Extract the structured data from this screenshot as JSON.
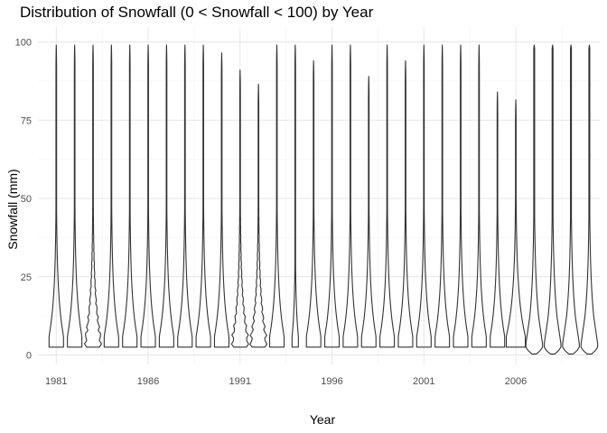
{
  "chart_data": {
    "type": "violin",
    "title": "Distribution of Snowfall (0 < Snowfall < 100) by Year",
    "xlabel": "Year",
    "ylabel": "Snowfall (mm)",
    "ylim": [
      0,
      100
    ],
    "y_ticks": [
      0,
      25,
      50,
      75,
      100
    ],
    "x_ticks": [
      1981,
      1986,
      1991,
      1996,
      2001,
      2006
    ],
    "xlim": [
      1981,
      2010
    ],
    "grid": true,
    "series": [
      {
        "year": 1981,
        "min": 2.5,
        "max": 99,
        "shape": "standard"
      },
      {
        "year": 1982,
        "min": 2.5,
        "max": 99,
        "shape": "standard"
      },
      {
        "year": 1983,
        "min": 2.5,
        "max": 99,
        "shape": "ridged"
      },
      {
        "year": 1984,
        "min": 2.5,
        "max": 99,
        "shape": "standard"
      },
      {
        "year": 1985,
        "min": 2.5,
        "max": 99,
        "shape": "standard"
      },
      {
        "year": 1986,
        "min": 2.5,
        "max": 99,
        "shape": "standard"
      },
      {
        "year": 1987,
        "min": 2.5,
        "max": 99,
        "shape": "standard"
      },
      {
        "year": 1988,
        "min": 2.5,
        "max": 99,
        "shape": "standard"
      },
      {
        "year": 1989,
        "min": 2.5,
        "max": 99,
        "shape": "standard"
      },
      {
        "year": 1990,
        "min": 2.5,
        "max": 96.5,
        "shape": "standard"
      },
      {
        "year": 1991,
        "min": 2.5,
        "max": 91,
        "shape": "ridged"
      },
      {
        "year": 1992,
        "min": 2.5,
        "max": 86.5,
        "shape": "ridged"
      },
      {
        "year": 1993,
        "min": 2.5,
        "max": 99,
        "shape": "standard"
      },
      {
        "year": 1994,
        "min": 2.5,
        "max": 99,
        "shape": "narrow"
      },
      {
        "year": 1995,
        "min": 2.5,
        "max": 94,
        "shape": "standard"
      },
      {
        "year": 1996,
        "min": 2.5,
        "max": 99,
        "shape": "standard"
      },
      {
        "year": 1997,
        "min": 2.5,
        "max": 99,
        "shape": "standard"
      },
      {
        "year": 1998,
        "min": 2.5,
        "max": 89,
        "shape": "standard"
      },
      {
        "year": 1999,
        "min": 2.5,
        "max": 99,
        "shape": "standard"
      },
      {
        "year": 2000,
        "min": 2.5,
        "max": 94,
        "shape": "standard"
      },
      {
        "year": 2001,
        "min": 2.5,
        "max": 99,
        "shape": "standard"
      },
      {
        "year": 2002,
        "min": 2.5,
        "max": 99,
        "shape": "standard"
      },
      {
        "year": 2003,
        "min": 2.5,
        "max": 99,
        "shape": "standard"
      },
      {
        "year": 2004,
        "min": 2.5,
        "max": 99,
        "shape": "standard"
      },
      {
        "year": 2005,
        "min": 2.5,
        "max": 84,
        "shape": "standard"
      },
      {
        "year": 2006,
        "min": 2.5,
        "max": 81.5,
        "shape": "wide"
      },
      {
        "year": 2007,
        "min": 0.3,
        "max": 99,
        "shape": "bowl"
      },
      {
        "year": 2008,
        "min": 0.3,
        "max": 99,
        "shape": "bowl"
      },
      {
        "year": 2009,
        "min": 0.3,
        "max": 99,
        "shape": "bowl"
      },
      {
        "year": 2010,
        "min": 0.3,
        "max": 99,
        "shape": "bowl"
      }
    ]
  }
}
